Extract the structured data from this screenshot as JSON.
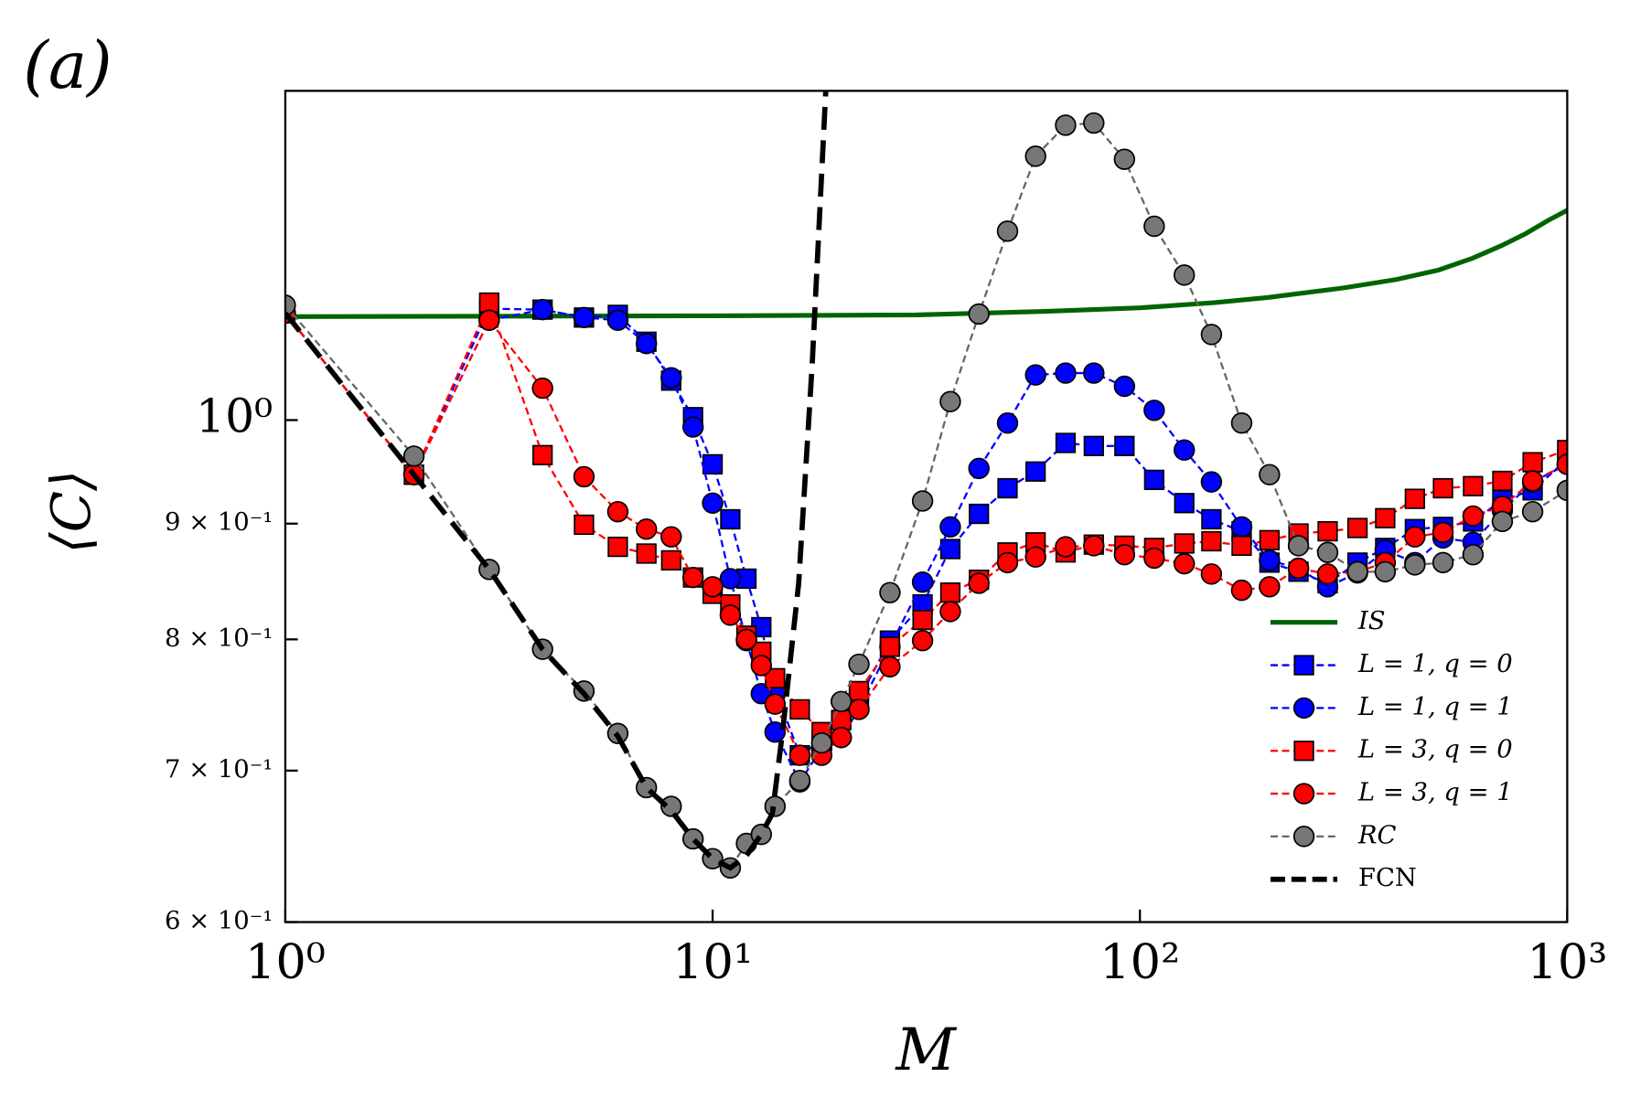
{
  "chart_data": {
    "type": "line",
    "panel_label": "(a)",
    "xlabel": "M",
    "ylabel": "⟨C⟩",
    "xscale": "log",
    "yscale": "log",
    "xlim": [
      1,
      1000
    ],
    "ylim": [
      0.6,
      1.398
    ],
    "xticks": [
      {
        "value": 1,
        "label": "10⁰"
      },
      {
        "value": 10,
        "label": "10¹"
      },
      {
        "value": 100,
        "label": "10²"
      },
      {
        "value": 1000,
        "label": "10³"
      }
    ],
    "yticks": [
      {
        "value": 0.6,
        "label": "6 × 10⁻¹"
      },
      {
        "value": 0.7,
        "label": "7 × 10⁻¹"
      },
      {
        "value": 0.8,
        "label": "8 × 10⁻¹"
      },
      {
        "value": 0.9,
        "label": "9 × 10⁻¹"
      },
      {
        "value": 1,
        "label": "10⁰"
      }
    ],
    "legend": "lower right",
    "x": [
      1,
      2,
      3,
      4,
      5,
      6,
      7,
      8,
      9,
      10,
      11,
      12,
      13,
      14,
      16,
      18,
      20,
      22,
      26,
      31,
      36,
      42,
      49,
      57,
      67,
      78,
      92,
      108,
      127,
      147,
      173,
      201,
      235,
      275,
      323,
      375,
      440,
      512,
      602,
      705,
      830,
      1000
    ],
    "series": [
      {
        "name": "IS",
        "color": "#006400",
        "line": "solid",
        "marker": "none",
        "x": [
          1,
          10,
          30,
          60,
          100,
          150,
          200,
          300,
          400,
          500,
          600,
          700,
          800,
          900,
          1000
        ],
        "values": [
          1.111,
          1.112,
          1.113,
          1.117,
          1.121,
          1.127,
          1.133,
          1.144,
          1.154,
          1.165,
          1.179,
          1.194,
          1.209,
          1.225,
          1.238
        ]
      },
      {
        "name": "L = 1,  q = 0",
        "color": "#0000ff",
        "line": "dashed",
        "marker": "square",
        "values": [
          1.115,
          0.946,
          1.12,
          1.119,
          1.11,
          1.113,
          1.083,
          1.041,
          1.003,
          0.956,
          0.904,
          0.851,
          0.81,
          0.761,
          0.711,
          0.722,
          0.737,
          0.753,
          0.799,
          0.829,
          0.877,
          0.909,
          0.933,
          0.949,
          0.977,
          0.974,
          0.974,
          0.941,
          0.919,
          0.904,
          0.893,
          0.865,
          0.857,
          0.847,
          0.865,
          0.878,
          0.895,
          0.897,
          0.902,
          0.922,
          0.931,
          0.961
        ]
      },
      {
        "name": "L = 1,  q = 1",
        "color": "#0000ff",
        "line": "dashed",
        "marker": "circle",
        "values": [
          1.115,
          0.946,
          1.107,
          1.119,
          1.11,
          1.107,
          1.081,
          1.044,
          0.993,
          0.919,
          0.851,
          0.799,
          0.757,
          0.728,
          0.692,
          0.716,
          0.724,
          0.745,
          0.794,
          0.848,
          0.897,
          0.952,
          0.997,
          1.047,
          1.049,
          1.049,
          1.035,
          1.01,
          0.97,
          0.939,
          0.897,
          0.867,
          0.86,
          0.844,
          0.856,
          0.876,
          0.865,
          0.887,
          0.883,
          0.912,
          0.939,
          0.956
        ]
      },
      {
        "name": "L = 3,  q = 0",
        "color": "#ff0000",
        "line": "dashed",
        "marker": "square",
        "values": [
          1.115,
          0.946,
          1.127,
          0.965,
          0.899,
          0.879,
          0.873,
          0.867,
          0.852,
          0.838,
          0.829,
          0.803,
          0.79,
          0.769,
          0.745,
          0.728,
          0.737,
          0.759,
          0.794,
          0.816,
          0.839,
          0.85,
          0.874,
          0.883,
          0.874,
          0.881,
          0.88,
          0.878,
          0.882,
          0.884,
          0.88,
          0.885,
          0.891,
          0.893,
          0.896,
          0.905,
          0.923,
          0.933,
          0.935,
          0.94,
          0.958,
          0.97
        ]
      },
      {
        "name": "L = 3,  q = 1",
        "color": "#ff0000",
        "line": "dashed",
        "marker": "circle",
        "values": [
          1.115,
          0.946,
          1.107,
          1.033,
          0.944,
          0.911,
          0.895,
          0.888,
          0.852,
          0.844,
          0.82,
          0.8,
          0.779,
          0.749,
          0.711,
          0.711,
          0.724,
          0.745,
          0.778,
          0.799,
          0.823,
          0.847,
          0.865,
          0.87,
          0.879,
          0.88,
          0.872,
          0.869,
          0.864,
          0.855,
          0.841,
          0.844,
          0.86,
          0.855,
          0.857,
          0.865,
          0.888,
          0.892,
          0.907,
          0.916,
          0.94,
          0.956
        ]
      },
      {
        "name": "RC",
        "color": "#666666",
        "line": "dashed",
        "marker": "circle",
        "values": [
          1.124,
          0.964,
          0.859,
          0.792,
          0.759,
          0.727,
          0.688,
          0.675,
          0.653,
          0.64,
          0.634,
          0.65,
          0.656,
          0.675,
          0.693,
          0.72,
          0.751,
          0.78,
          0.839,
          0.921,
          1.019,
          1.114,
          1.212,
          1.308,
          1.35,
          1.353,
          1.304,
          1.218,
          1.159,
          1.091,
          0.997,
          0.946,
          0.88,
          0.874,
          0.857,
          0.857,
          0.863,
          0.865,
          0.872,
          0.902,
          0.911,
          0.931
        ]
      },
      {
        "name": "FCN",
        "color": "#000000",
        "line": "bold-dashed",
        "marker": "none",
        "x": [
          1,
          2,
          3,
          4,
          5,
          6,
          7,
          8,
          9,
          10,
          11,
          12,
          13,
          13.8,
          14.6,
          15.9,
          17.1,
          18.4
        ],
        "values": [
          1.115,
          0.946,
          0.859,
          0.792,
          0.757,
          0.725,
          0.688,
          0.672,
          0.653,
          0.64,
          0.634,
          0.642,
          0.656,
          0.67,
          0.73,
          0.847,
          1.058,
          1.398
        ]
      }
    ]
  }
}
